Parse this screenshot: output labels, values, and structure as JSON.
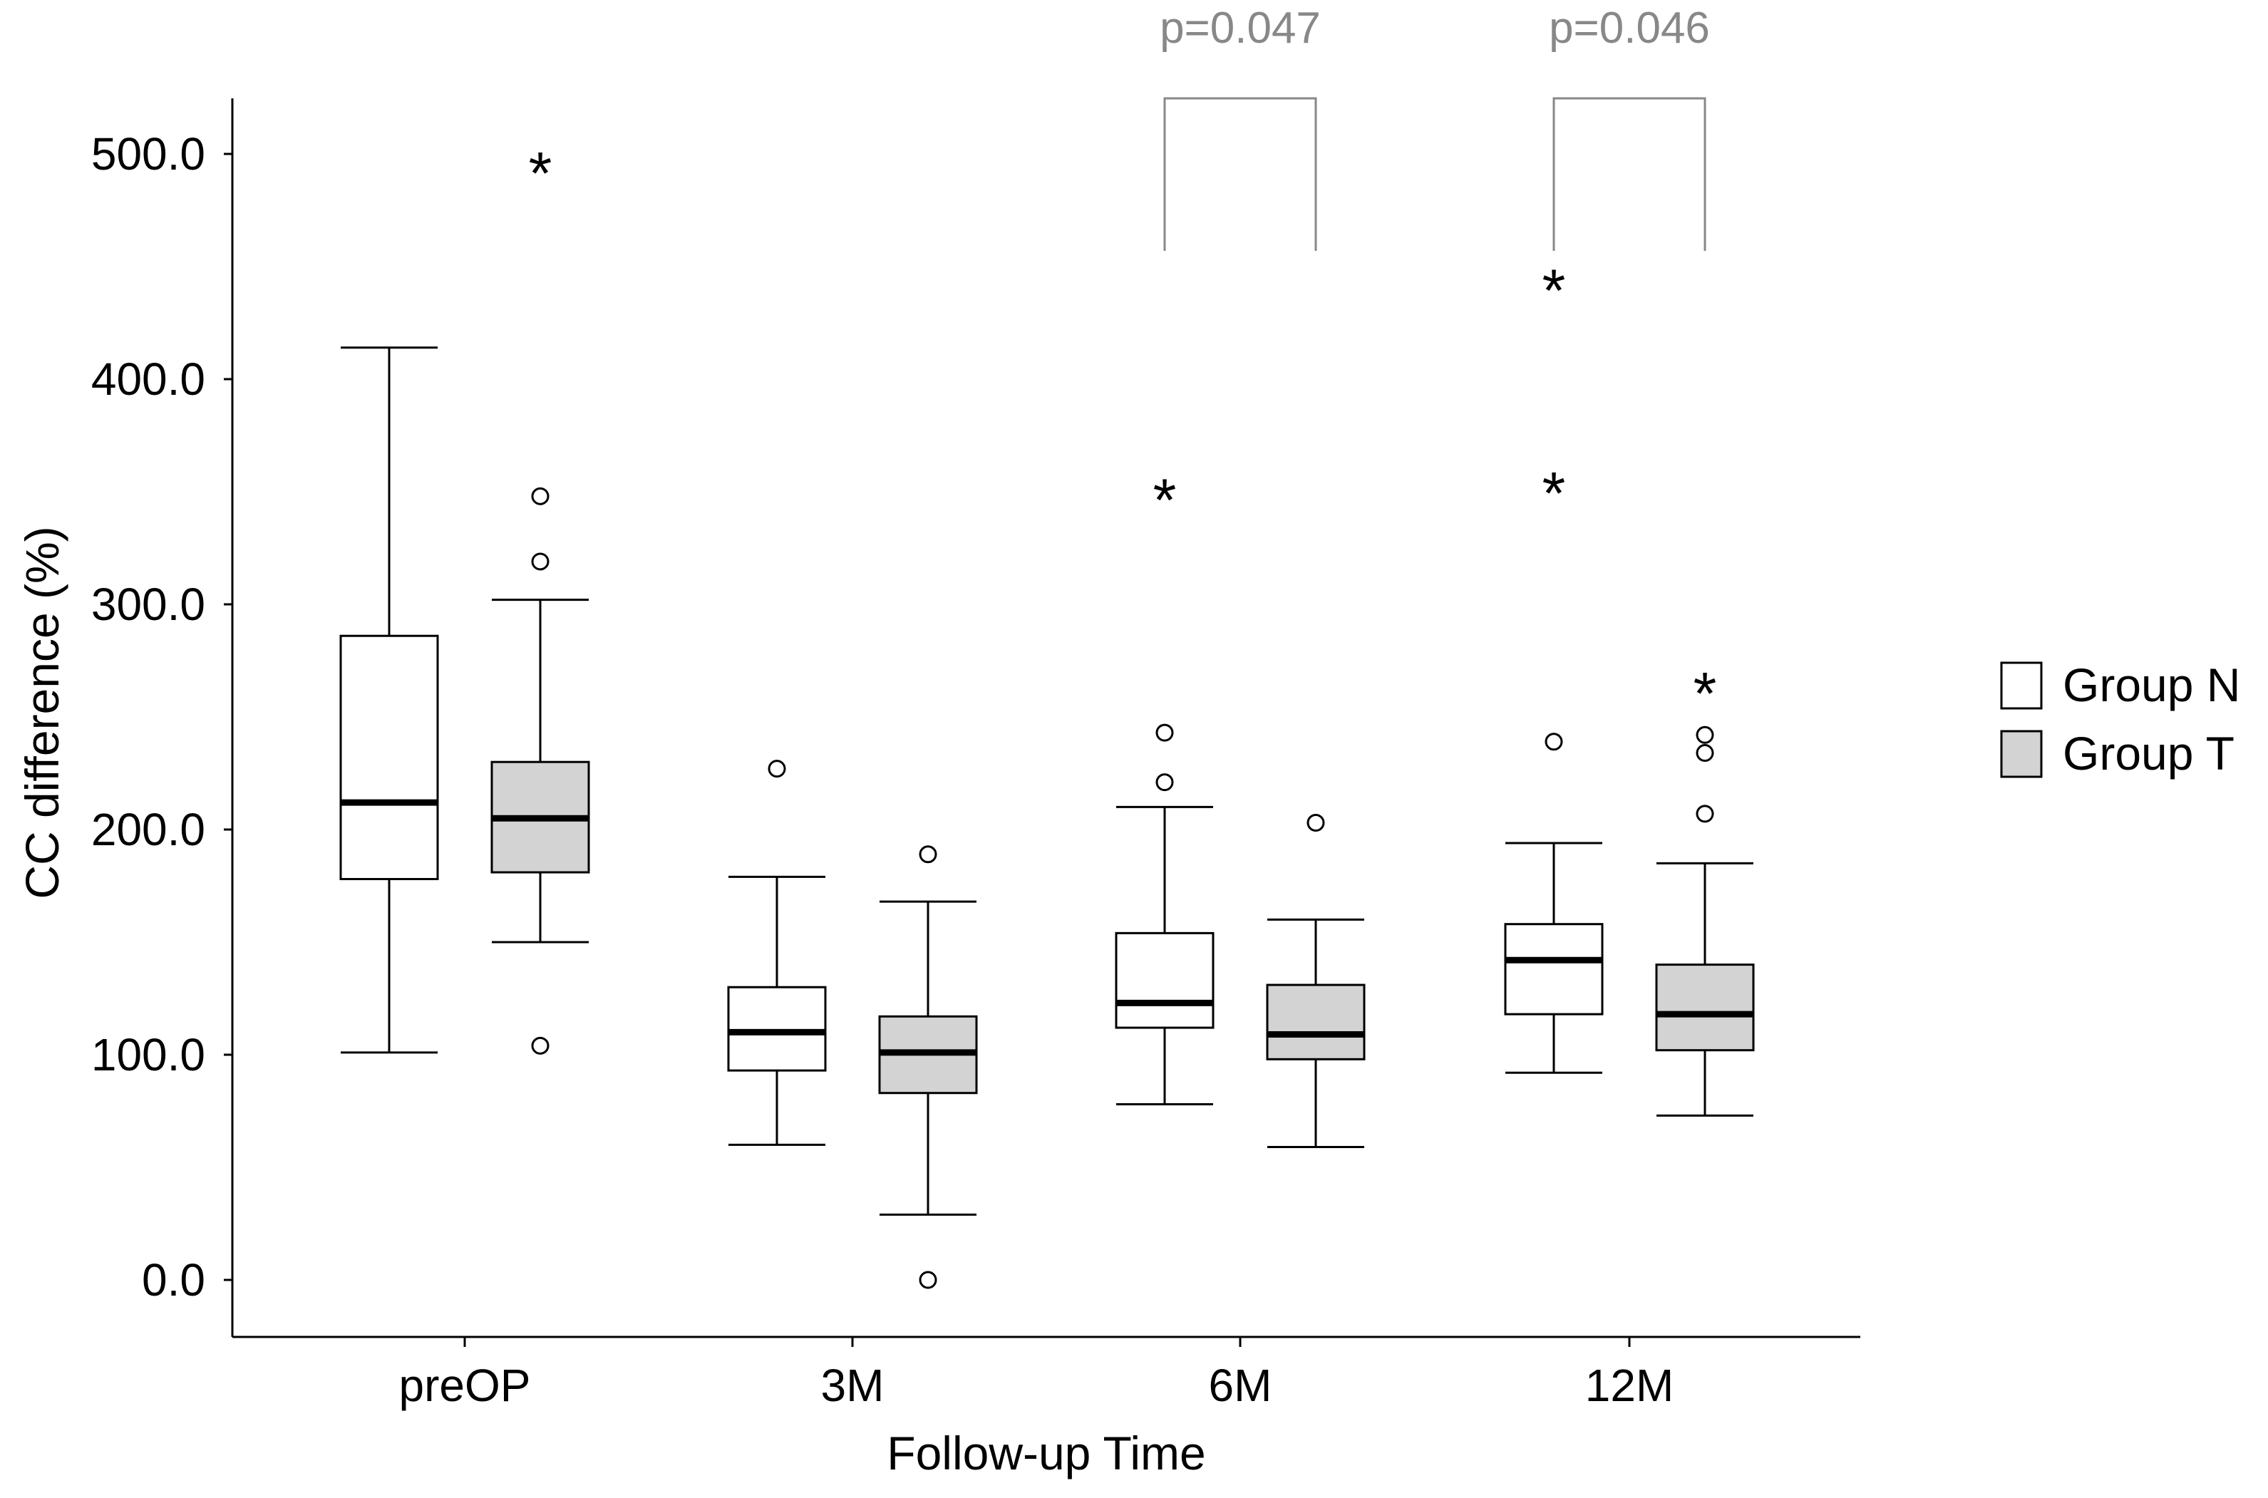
{
  "chart_data": {
    "type": "boxplot",
    "title": "",
    "xlabel": "Follow-up Time",
    "ylabel": "CC difference (%)",
    "ylim": [
      -25,
      525
    ],
    "yticks": [
      0,
      100,
      200,
      300,
      400,
      500
    ],
    "ytick_labels": [
      "0.0",
      "100.0",
      "200.0",
      "300.0",
      "400.0",
      "500.0"
    ],
    "categories": [
      "preOP",
      "3M",
      "6M",
      "12M"
    ],
    "legend_position": "right",
    "series": [
      {
        "name": "Group N",
        "color": "#ffffff",
        "boxes": [
          {
            "whisker_low": 101,
            "q1": 178,
            "median": 212,
            "q3": 286,
            "whisker_high": 414,
            "outliers": [],
            "extremes": []
          },
          {
            "whisker_low": 60,
            "q1": 93,
            "median": 110,
            "q3": 130,
            "whisker_high": 179,
            "outliers": [
              227
            ],
            "extremes": []
          },
          {
            "whisker_low": 78,
            "q1": 112,
            "median": 123,
            "q3": 154,
            "whisker_high": 210,
            "outliers": [
              221,
              243
            ],
            "extremes": [
              348
            ]
          },
          {
            "whisker_low": 92,
            "q1": 118,
            "median": 142,
            "q3": 158,
            "whisker_high": 194,
            "outliers": [
              239
            ],
            "extremes": [
              351,
              441
            ]
          }
        ]
      },
      {
        "name": "Group T",
        "color": "#d3d3d3",
        "boxes": [
          {
            "whisker_low": 150,
            "q1": 181,
            "median": 205,
            "q3": 230,
            "whisker_high": 302,
            "outliers": [
              104,
              319,
              348
            ],
            "extremes": [
              493
            ]
          },
          {
            "whisker_low": 29,
            "q1": 83,
            "median": 101,
            "q3": 117,
            "whisker_high": 168,
            "outliers": [
              0,
              189
            ],
            "extremes": []
          },
          {
            "whisker_low": 59,
            "q1": 98,
            "median": 109,
            "q3": 131,
            "whisker_high": 160,
            "outliers": [
              203
            ],
            "extremes": []
          },
          {
            "whisker_low": 73,
            "q1": 102,
            "median": 118,
            "q3": 140,
            "whisker_high": 185,
            "outliers": [
              207,
              234,
              242
            ],
            "extremes": [
              262
            ]
          }
        ]
      }
    ],
    "annotations": [
      {
        "category": "6M",
        "text": "p=0.047"
      },
      {
        "category": "12M",
        "text": "p=0.046"
      }
    ]
  }
}
